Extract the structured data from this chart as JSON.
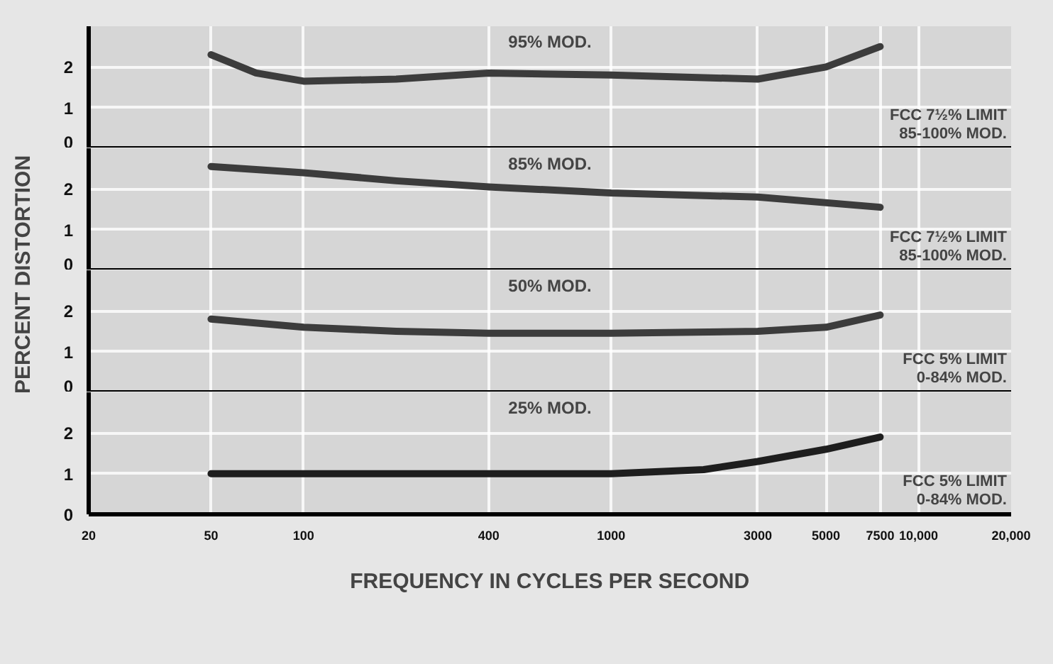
{
  "chart_data": [
    {
      "type": "line",
      "ylabel": "PERCENT DISTORTION",
      "annotations": [
        "95% MOD.",
        "FCC 7½% LIMIT\n85-100% MOD."
      ],
      "x": [
        50,
        70,
        100,
        200,
        400,
        1000,
        3000,
        5000,
        7500
      ],
      "values": [
        2.3,
        1.85,
        1.65,
        1.7,
        1.85,
        1.8,
        1.7,
        2.0,
        2.5
      ],
      "color": "#3c3c3c",
      "xlim": [
        20,
        20000
      ],
      "ylim": [
        0,
        3
      ],
      "yticks": [
        0,
        1,
        2
      ],
      "xticks": [
        20,
        50,
        100,
        400,
        1000,
        3000,
        5000,
        7500,
        10000,
        20000
      ],
      "log": "x",
      "grid": true,
      "tick_labels": "y",
      "line_style": "solid"
    },
    {
      "type": "line",
      "annotations": [
        "85% MOD.",
        "FCC 7½% LIMIT\n85-100% MOD."
      ],
      "x": [
        50,
        100,
        200,
        400,
        1000,
        3000,
        7500
      ],
      "values": [
        2.55,
        2.4,
        2.2,
        2.05,
        1.9,
        1.8,
        1.55
      ],
      "color": "#3c3c3c",
      "xlim": [
        20,
        20000
      ],
      "ylim": [
        0,
        3
      ],
      "yticks": [
        0,
        1,
        2
      ],
      "xticks": [
        20,
        50,
        100,
        400,
        1000,
        3000,
        5000,
        7500,
        10000,
        20000
      ],
      "log": "x",
      "grid": true,
      "tick_labels": "y",
      "line_style": "solid"
    },
    {
      "type": "line",
      "annotations": [
        "50% MOD.",
        "FCC 5% LIMIT\n0-84% MOD."
      ],
      "x": [
        50,
        100,
        200,
        400,
        1000,
        3000,
        5000,
        7500
      ],
      "values": [
        1.8,
        1.6,
        1.5,
        1.45,
        1.45,
        1.5,
        1.6,
        1.9
      ],
      "color": "#3c3c3c",
      "xlim": [
        20,
        20000
      ],
      "ylim": [
        0,
        3
      ],
      "yticks": [
        0,
        1,
        2
      ],
      "xticks": [
        20,
        50,
        100,
        400,
        1000,
        3000,
        5000,
        7500,
        10000,
        20000
      ],
      "log": "x",
      "grid": true,
      "tick_labels": "y",
      "line_style": "solid"
    },
    {
      "type": "line",
      "xlabel": "FREQUENCY IN CYCLES PER SECOND",
      "annotations": [
        "25% MOD.",
        "FCC 5% LIMIT\n0-84% MOD."
      ],
      "x": [
        50,
        100,
        400,
        1000,
        2000,
        3000,
        5000,
        7500
      ],
      "values": [
        1.0,
        1.0,
        1.0,
        1.0,
        1.1,
        1.3,
        1.6,
        1.9
      ],
      "color": "#1e1e1e",
      "xlim": [
        20,
        20000
      ],
      "ylim": [
        0,
        3
      ],
      "yticks": [
        0,
        1,
        2
      ],
      "xticks": [
        20,
        50,
        100,
        400,
        1000,
        3000,
        5000,
        7500,
        {
          "value": 10000,
          "label": "10,000"
        },
        {
          "value": 20000,
          "label": "20,000"
        }
      ],
      "log": "x",
      "grid": true,
      "line_style": "solid"
    }
  ]
}
